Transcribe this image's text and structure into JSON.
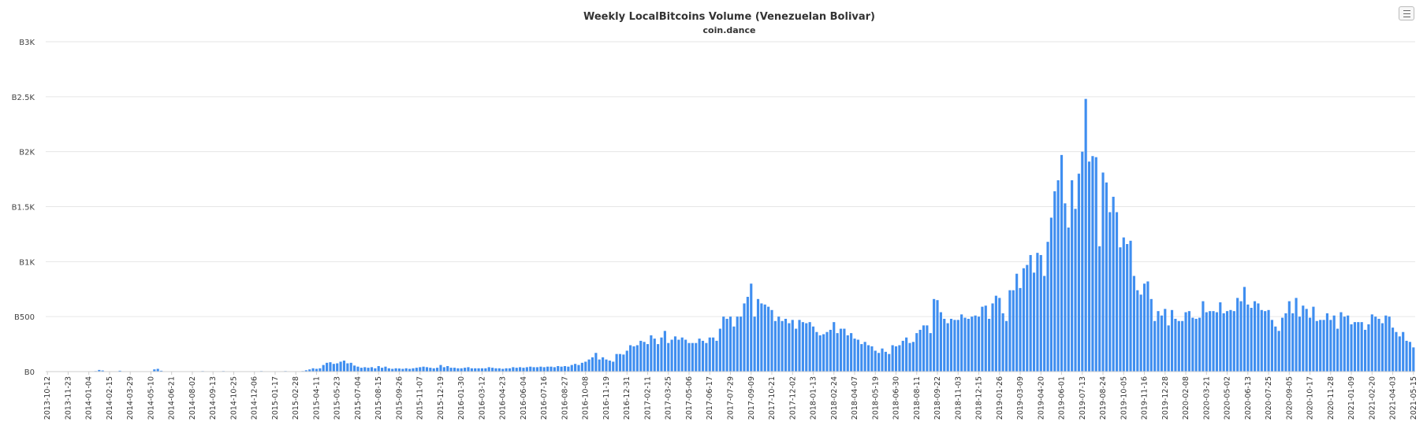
{
  "menu": {
    "icon": "hamburger-menu-icon"
  },
  "colors": {
    "bar": "#3f8ef0",
    "grid": "#e6e6e6",
    "axis": "#333333",
    "title": "#333333"
  },
  "chart_data": {
    "type": "bar",
    "title": "Weekly LocalBitcoins Volume (Venezuelan Bolivar)",
    "subtitle": "coin.dance",
    "xlabel": "",
    "ylabel": "",
    "ylim": [
      0,
      3000
    ],
    "yticks": [
      0,
      500,
      1000,
      1500,
      2000,
      2500,
      3000
    ],
    "ytick_labels": [
      "B0",
      "B500",
      "B1K",
      "B1.5K",
      "B2K",
      "B2.5K",
      "B3K"
    ],
    "yunit": "thousands of Bs",
    "grid": true,
    "legend": "none",
    "start_date": "2013-10-12",
    "interval_days": 7,
    "xtick_every": 6,
    "values": [
      0,
      0,
      0,
      0,
      0,
      1,
      0,
      0,
      0,
      0,
      0,
      0,
      0,
      0,
      5,
      15,
      10,
      0,
      0,
      0,
      0,
      8,
      0,
      0,
      0,
      0,
      0,
      0,
      0,
      0,
      0,
      20,
      25,
      8,
      0,
      0,
      0,
      0,
      0,
      0,
      0,
      0,
      0,
      0,
      0,
      5,
      0,
      0,
      0,
      0,
      0,
      5,
      0,
      0,
      0,
      0,
      0,
      0,
      0,
      0,
      0,
      0,
      5,
      0,
      0,
      0,
      0,
      0,
      0,
      5,
      0,
      0,
      0,
      0,
      5,
      12,
      20,
      30,
      25,
      30,
      60,
      80,
      85,
      70,
      75,
      90,
      100,
      75,
      80,
      55,
      45,
      35,
      40,
      35,
      40,
      30,
      50,
      35,
      45,
      30,
      25,
      30,
      28,
      25,
      30,
      25,
      30,
      35,
      40,
      45,
      40,
      35,
      30,
      35,
      60,
      40,
      50,
      35,
      35,
      30,
      30,
      35,
      40,
      30,
      30,
      30,
      30,
      30,
      40,
      35,
      30,
      30,
      25,
      30,
      30,
      40,
      35,
      40,
      35,
      40,
      45,
      40,
      40,
      45,
      40,
      45,
      45,
      40,
      50,
      45,
      50,
      45,
      60,
      70,
      60,
      80,
      90,
      110,
      130,
      170,
      110,
      130,
      110,
      100,
      90,
      160,
      160,
      155,
      190,
      240,
      230,
      240,
      280,
      270,
      250,
      330,
      300,
      250,
      310,
      370,
      260,
      290,
      320,
      290,
      310,
      290,
      260,
      260,
      260,
      300,
      280,
      260,
      310,
      310,
      280,
      390,
      500,
      480,
      500,
      410,
      500,
      500,
      620,
      680,
      800,
      500,
      660,
      620,
      610,
      590,
      560,
      460,
      500,
      460,
      480,
      440,
      470,
      390,
      470,
      450,
      440,
      450,
      410,
      360,
      330,
      340,
      360,
      380,
      450,
      350,
      390,
      390,
      330,
      350,
      300,
      290,
      250,
      270,
      240,
      230,
      190,
      170,
      210,
      180,
      160,
      240,
      230,
      240,
      280,
      310,
      260,
      270,
      350,
      380,
      420,
      420,
      350,
      660,
      650,
      540,
      480,
      440,
      480,
      470,
      470,
      520,
      490,
      480,
      500,
      510,
      500,
      590,
      600,
      480,
      620,
      690,
      670,
      530,
      460,
      740,
      740,
      890,
      760,
      940,
      970,
      1060,
      900,
      1080,
      1060,
      870,
      1180,
      1400,
      1640,
      1740,
      1970,
      1530,
      1310,
      1740,
      1480,
      1800,
      2000,
      2480,
      1910,
      1960,
      1950,
      1140,
      1810,
      1720,
      1450,
      1590,
      1450,
      1130,
      1220,
      1160,
      1190,
      870,
      740,
      700,
      800,
      820,
      660,
      460,
      550,
      510,
      570,
      420,
      560,
      480,
      460,
      460,
      540,
      550,
      490,
      480,
      490,
      640,
      540,
      550,
      550,
      540,
      630,
      530,
      550,
      560,
      550,
      670,
      640,
      770,
      610,
      580,
      640,
      620,
      560,
      550,
      560,
      470,
      410,
      370,
      490,
      530,
      640,
      530,
      670,
      500,
      600,
      570,
      490,
      590,
      460,
      470,
      470,
      530,
      470,
      510,
      390,
      540,
      500,
      510,
      430,
      450,
      450,
      450,
      380,
      430,
      520,
      500,
      480,
      440,
      510,
      500,
      400,
      360,
      320,
      360,
      280,
      270,
      220
    ]
  }
}
